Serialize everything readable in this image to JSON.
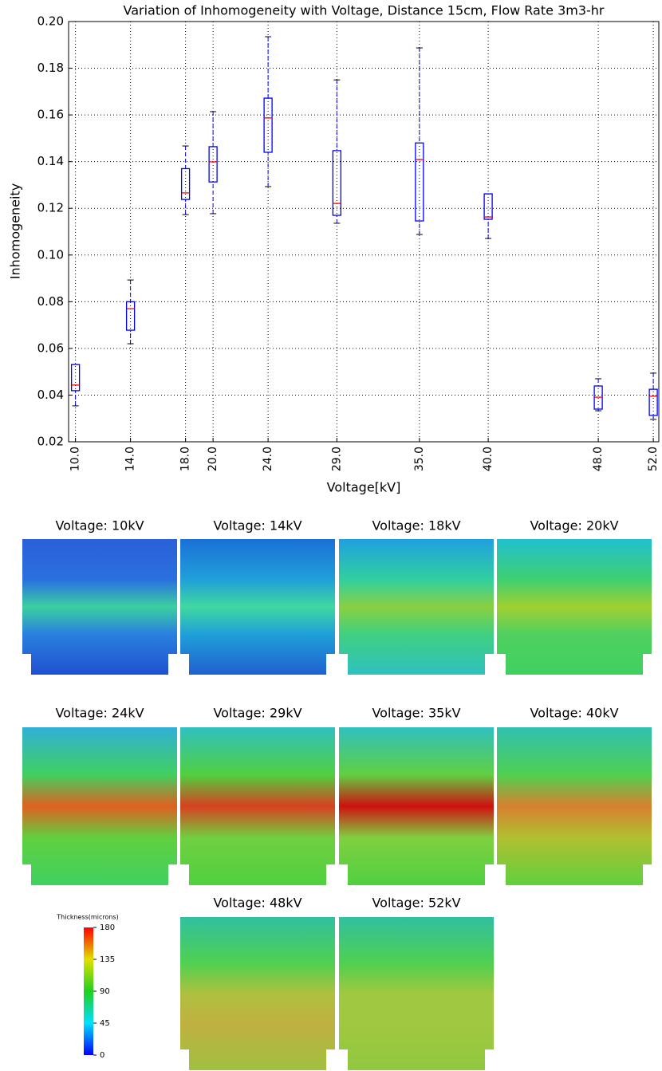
{
  "chart_data": {
    "type": "box",
    "title": "Variation of Inhomogeneity with Voltage, Distance 15cm, Flow Rate 3m3-hr",
    "x_label": "Voltage[kV]",
    "y_label": "Inhomogeneity",
    "xlim": [
      9.5,
      52.4
    ],
    "ylim": [
      0.02,
      0.2
    ],
    "xticks": [
      {
        "value": 10,
        "label": "10.0"
      },
      {
        "value": 14,
        "label": "14.0"
      },
      {
        "value": 18,
        "label": "18.0"
      },
      {
        "value": 20,
        "label": "20.0"
      },
      {
        "value": 24,
        "label": "24.0"
      },
      {
        "value": 29,
        "label": "29.0"
      },
      {
        "value": 35,
        "label": "35.0"
      },
      {
        "value": 40,
        "label": "40.0"
      },
      {
        "value": 48,
        "label": "48.0"
      },
      {
        "value": 52,
        "label": "52.0"
      }
    ],
    "yticks": [
      {
        "value": 0.02,
        "label": "0.02"
      },
      {
        "value": 0.04,
        "label": "0.04"
      },
      {
        "value": 0.06,
        "label": "0.06"
      },
      {
        "value": 0.08,
        "label": "0.08"
      },
      {
        "value": 0.1,
        "label": "0.10"
      },
      {
        "value": 0.12,
        "label": "0.12"
      },
      {
        "value": 0.14,
        "label": "0.14"
      },
      {
        "value": 0.16,
        "label": "0.16"
      },
      {
        "value": 0.18,
        "label": "0.18"
      },
      {
        "value": 0.2,
        "label": "0.20"
      }
    ],
    "grid": true,
    "box_color": "#0000ff",
    "median_color": "#ff0000",
    "cap_color": "#000000",
    "boxes": [
      {
        "position": 10,
        "whislo": 0.0354,
        "q1": 0.0419,
        "med": 0.0443,
        "q3": 0.0531,
        "whishi": 0.0531
      },
      {
        "position": 14,
        "whislo": 0.062,
        "q1": 0.0678,
        "med": 0.077,
        "q3": 0.08,
        "whishi": 0.0893
      },
      {
        "position": 18,
        "whislo": 0.1173,
        "q1": 0.1238,
        "med": 0.1266,
        "q3": 0.137,
        "whishi": 0.1467
      },
      {
        "position": 20,
        "whislo": 0.1177,
        "q1": 0.1313,
        "med": 0.1399,
        "q3": 0.1464,
        "whishi": 0.1614
      },
      {
        "position": 24,
        "whislo": 0.1293,
        "q1": 0.144,
        "med": 0.1587,
        "q3": 0.1672,
        "whishi": 0.1935
      },
      {
        "position": 29,
        "whislo": 0.1136,
        "q1": 0.117,
        "med": 0.1221,
        "q3": 0.1447,
        "whishi": 0.175
      },
      {
        "position": 35,
        "whislo": 0.1088,
        "q1": 0.1146,
        "med": 0.1409,
        "q3": 0.148,
        "whishi": 0.1887
      },
      {
        "position": 40,
        "whislo": 0.1071,
        "q1": 0.1153,
        "med": 0.1163,
        "q3": 0.1262,
        "whishi": 0.1262
      },
      {
        "position": 48,
        "whislo": 0.0333,
        "q1": 0.034,
        "med": 0.0391,
        "q3": 0.0439,
        "whishi": 0.047
      },
      {
        "position": 52,
        "whislo": 0.0296,
        "q1": 0.0313,
        "med": 0.0395,
        "q3": 0.0425,
        "whishi": 0.0494
      }
    ]
  },
  "heatmaps": {
    "panels": [
      {
        "title": "Voltage: 10kV"
      },
      {
        "title": "Voltage: 14kV"
      },
      {
        "title": "Voltage: 18kV"
      },
      {
        "title": "Voltage: 20kV"
      },
      {
        "title": "Voltage: 24kV"
      },
      {
        "title": "Voltage: 29kV"
      },
      {
        "title": "Voltage: 35kV"
      },
      {
        "title": "Voltage: 40kV"
      },
      {
        "title": "Voltage: 48kV"
      },
      {
        "title": "Voltage: 52kV"
      }
    ],
    "colorbar": {
      "label": "Thickness(microns)",
      "lim": [
        0,
        180
      ],
      "ticks": [
        0,
        45,
        90,
        135,
        180
      ]
    }
  }
}
